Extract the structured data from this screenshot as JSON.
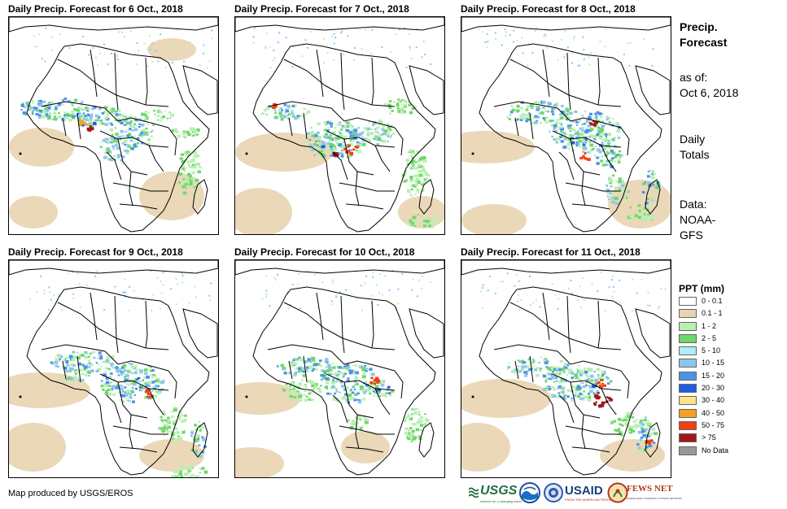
{
  "panels": [
    {
      "title": "Daily Precip. Forecast for 6 Oct., 2018",
      "variant": 0
    },
    {
      "title": "Daily Precip. Forecast for 7 Oct., 2018",
      "variant": 1
    },
    {
      "title": "Daily Precip. Forecast for 8 Oct., 2018",
      "variant": 2
    },
    {
      "title": "Daily Precip. Forecast for 9 Oct., 2018",
      "variant": 3
    },
    {
      "title": "Daily Precip. Forecast for 10 Oct., 2018",
      "variant": 4
    },
    {
      "title": "Daily Precip. Forecast for 11 Oct., 2018",
      "variant": 5
    }
  ],
  "side": {
    "title_line1": "Precip.",
    "title_line2": "Forecast",
    "asof_line1": "as of:",
    "asof_line2": "Oct 6, 2018",
    "totals_line1": "Daily",
    "totals_line2": "Totals",
    "data_line1": "Data:",
    "data_line2": "NOAA-",
    "data_line3": "GFS"
  },
  "legend": {
    "title": "PPT (mm)",
    "items": [
      {
        "label": "0 - 0.1",
        "color": "#ffffff"
      },
      {
        "label": "0.1 - 1",
        "color": "#e8d4b0"
      },
      {
        "label": "1 - 2",
        "color": "#b8f0b0"
      },
      {
        "label": "2 - 5",
        "color": "#6ed86a"
      },
      {
        "label": "5 - 10",
        "color": "#b0ecf4"
      },
      {
        "label": "10 - 15",
        "color": "#8ec4f0"
      },
      {
        "label": "15 - 20",
        "color": "#4a94e8"
      },
      {
        "label": "20 - 30",
        "color": "#1d5ee0"
      },
      {
        "label": "30 - 40",
        "color": "#fce48a"
      },
      {
        "label": "40 - 50",
        "color": "#f8a020"
      },
      {
        "label": "50 - 75",
        "color": "#f04010"
      },
      {
        "label": "> 75",
        "color": "#a01818"
      },
      {
        "label": "No Data",
        "color": "#999999"
      }
    ]
  },
  "credit": "Map produced by USGS/EROS",
  "logos": {
    "usgs": "USGS",
    "usgs_tagline": "science for a changing world",
    "usaid": "USAID",
    "usaid_tagline": "FROM THE AMERICAN PEOPLE",
    "fews": "FEWS NET",
    "fews_tagline": "FAMINE EARLY WARNING SYSTEMS NETWORK"
  }
}
